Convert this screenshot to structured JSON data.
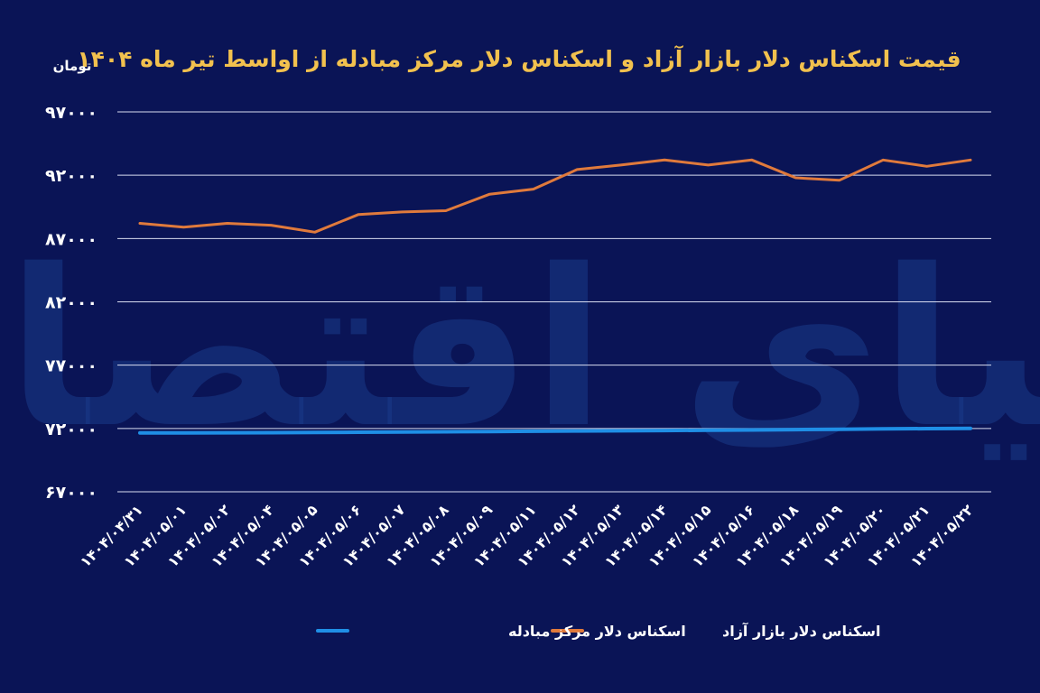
{
  "chart_data": {
    "type": "line",
    "title": "قیمت اسکناس دلار بازار آزاد و اسکناس دلار مرکز مبادله از اواسط تیر ماه ۱۴۰۴",
    "ylabel": "تومان",
    "xlabel": "",
    "ylim": [
      67000,
      97000
    ],
    "yticks": [
      "۶۷۰۰۰",
      "۷۲۰۰۰",
      "۷۷۰۰۰",
      "۸۲۰۰۰",
      "۸۷۰۰۰",
      "۹۲۰۰۰",
      "۹۷۰۰۰"
    ],
    "ytick_values": [
      67000,
      72000,
      77000,
      82000,
      87000,
      92000,
      97000
    ],
    "grid": true,
    "legend_position": "bottom-center",
    "categories": [
      "۱۴۰۴/۰۴/۳۱",
      "۱۴۰۴/۰۵/۰۱",
      "۱۴۰۴/۰۵/۰۲",
      "۱۴۰۴/۰۵/۰۴",
      "۱۴۰۴/۰۵/۰۵",
      "۱۴۰۴/۰۵/۰۶",
      "۱۴۰۴/۰۵/۰۷",
      "۱۴۰۴/۰۵/۰۸",
      "۱۴۰۴/۰۵/۰۹",
      "۱۴۰۴/۰۵/۱۱",
      "۱۴۰۴/۰۵/۱۲",
      "۱۴۰۴/۰۵/۱۳",
      "۱۴۰۴/۰۵/۱۴",
      "۱۴۰۴/۰۵/۱۵",
      "۱۴۰۴/۰۵/۱۶",
      "۱۴۰۴/۰۵/۱۸",
      "۱۴۰۴/۰۵/۱۹",
      "۱۴۰۴/۰۵/۲۰",
      "۱۴۰۴/۰۵/۲۱",
      "۱۴۰۴/۰۵/۲۲"
    ],
    "series": [
      {
        "name": "اسکناس دلار بازار آزاد",
        "color": "#e07a3c",
        "values": [
          88200,
          87900,
          88200,
          88050,
          87500,
          88900,
          89100,
          89200,
          90500,
          90900,
          92450,
          92800,
          93200,
          92800,
          93200,
          91800,
          91600,
          93200,
          92700,
          93200
        ]
      },
      {
        "name": "اسکناس دلار مرکز مبادله",
        "color": "#1f8fe6",
        "values": [
          71650,
          71650,
          71660,
          71670,
          71680,
          71700,
          71720,
          71740,
          71760,
          71780,
          71800,
          71820,
          71840,
          71860,
          71880,
          71910,
          71940,
          71970,
          71990,
          72000
        ]
      }
    ]
  },
  "watermark": {
    "text": "دنیای اقتصاد",
    "color": "#1a3a8a"
  },
  "colors": {
    "background": "#0a1456",
    "title": "#f2c14e",
    "text": "#ffffff",
    "grid": "#d8dcf0"
  }
}
